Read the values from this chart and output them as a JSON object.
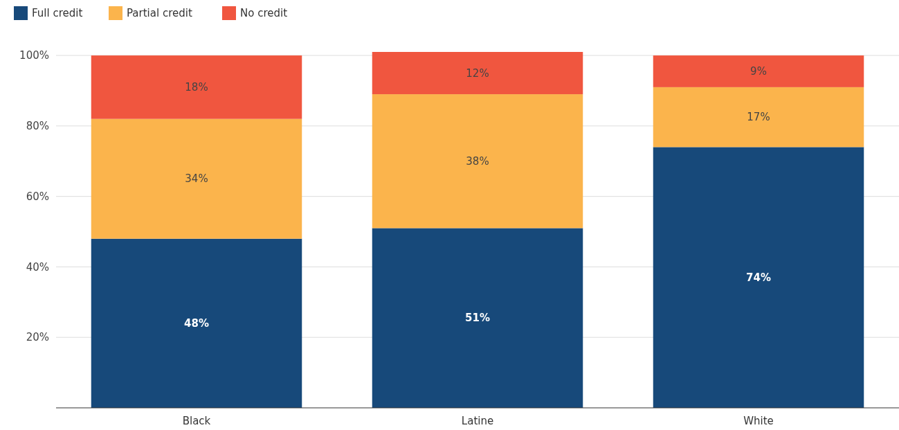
{
  "chart_data": {
    "type": "bar",
    "stacked": true,
    "categories": [
      "Black",
      "Latine",
      "White"
    ],
    "series": [
      {
        "name": "Full credit",
        "color": "#17497a",
        "values": [
          48,
          51,
          74
        ],
        "value_labels": [
          "48%",
          "51%",
          "74%"
        ]
      },
      {
        "name": "Partial credit",
        "color": "#fbb44c",
        "values": [
          34,
          38,
          17
        ],
        "value_labels": [
          "34%",
          "38%",
          "17%"
        ]
      },
      {
        "name": "No credit",
        "color": "#f0563f",
        "values": [
          18,
          12,
          9
        ],
        "value_labels": [
          "18%",
          "12%",
          "9%"
        ]
      }
    ],
    "ylim": [
      0,
      101
    ],
    "yticks": [
      {
        "value": 20,
        "label": "20%"
      },
      {
        "value": 40,
        "label": "40%"
      },
      {
        "value": 60,
        "label": "60%"
      },
      {
        "value": 80,
        "label": "80%"
      },
      {
        "value": 100,
        "label": "100%"
      }
    ],
    "grid": "y",
    "legend": "top left"
  }
}
